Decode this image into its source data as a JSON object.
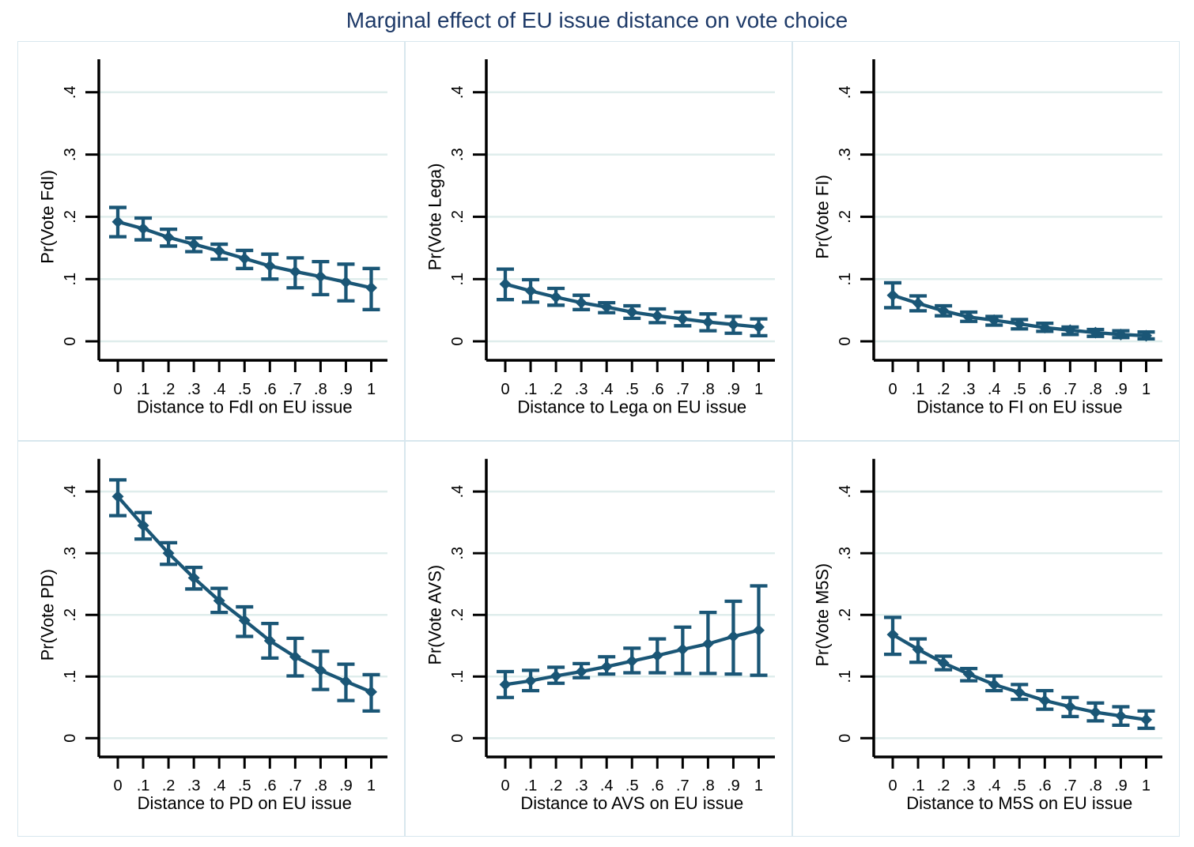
{
  "title": {
    "text": "Marginal effect of EU issue distance on vote choice"
  },
  "style": {
    "series_color": "#1a5676",
    "gridline_color": "#dfedec",
    "panel_border_color": "#d8e7ee",
    "axis_color": "#000000",
    "title_color": "#1e3a68",
    "background": "#ffffff"
  },
  "layout": {
    "rows": 2,
    "cols": 3,
    "grid": true,
    "legend": "none",
    "marker": "diamond",
    "error_bars": "capped"
  },
  "axes": {
    "x_tick_labels": [
      "0",
      ".1",
      ".2",
      ".3",
      ".4",
      ".5",
      ".6",
      ".7",
      ".8",
      ".9",
      "1"
    ],
    "x_tick_values": [
      0,
      0.1,
      0.2,
      0.3,
      0.4,
      0.5,
      0.6,
      0.7,
      0.8,
      0.9,
      1
    ],
    "y_tick_labels": [
      "0",
      ".1",
      ".2",
      ".3",
      ".4"
    ],
    "y_tick_values": [
      0,
      0.1,
      0.2,
      0.3,
      0.4
    ],
    "ylim": [
      -0.03,
      0.45
    ]
  },
  "chart_data": [
    {
      "type": "line",
      "party": "FdI",
      "ylabel": "Pr(Vote FdI)",
      "xlabel": "Distance to FdI on EU issue",
      "x": [
        0,
        0.1,
        0.2,
        0.3,
        0.4,
        0.5,
        0.6,
        0.7,
        0.8,
        0.9,
        1
      ],
      "values": [
        0.192,
        0.181,
        0.167,
        0.156,
        0.145,
        0.133,
        0.121,
        0.112,
        0.104,
        0.095,
        0.086
      ],
      "ci_low": [
        0.168,
        0.163,
        0.153,
        0.144,
        0.132,
        0.117,
        0.1,
        0.086,
        0.075,
        0.065,
        0.051
      ],
      "ci_high": [
        0.215,
        0.198,
        0.18,
        0.166,
        0.156,
        0.146,
        0.14,
        0.134,
        0.128,
        0.124,
        0.117
      ]
    },
    {
      "type": "line",
      "party": "Lega",
      "ylabel": "Pr(Vote Lega)",
      "xlabel": "Distance to Lega on EU issue",
      "x": [
        0,
        0.1,
        0.2,
        0.3,
        0.4,
        0.5,
        0.6,
        0.7,
        0.8,
        0.9,
        1
      ],
      "values": [
        0.092,
        0.081,
        0.071,
        0.062,
        0.055,
        0.047,
        0.041,
        0.036,
        0.031,
        0.027,
        0.023
      ],
      "ci_low": [
        0.067,
        0.063,
        0.058,
        0.051,
        0.046,
        0.037,
        0.03,
        0.025,
        0.017,
        0.013,
        0.009
      ],
      "ci_high": [
        0.116,
        0.099,
        0.085,
        0.074,
        0.062,
        0.057,
        0.052,
        0.047,
        0.044,
        0.04,
        0.036
      ]
    },
    {
      "type": "line",
      "party": "FI",
      "ylabel": "Pr(Vote FI)",
      "xlabel": "Distance to FI on EU issue",
      "x": [
        0,
        0.1,
        0.2,
        0.3,
        0.4,
        0.5,
        0.6,
        0.7,
        0.8,
        0.9,
        1
      ],
      "values": [
        0.074,
        0.061,
        0.049,
        0.039,
        0.034,
        0.028,
        0.022,
        0.018,
        0.014,
        0.011,
        0.009
      ],
      "ci_low": [
        0.054,
        0.049,
        0.041,
        0.032,
        0.026,
        0.02,
        0.016,
        0.011,
        0.008,
        0.006,
        0.004
      ],
      "ci_high": [
        0.094,
        0.073,
        0.057,
        0.047,
        0.04,
        0.035,
        0.029,
        0.023,
        0.019,
        0.017,
        0.015
      ]
    },
    {
      "type": "line",
      "party": "PD",
      "ylabel": "Pr(Vote PD)",
      "xlabel": "Distance to PD on EU issue",
      "x": [
        0,
        0.1,
        0.2,
        0.3,
        0.4,
        0.5,
        0.6,
        0.7,
        0.8,
        0.9,
        1
      ],
      "values": [
        0.392,
        0.345,
        0.3,
        0.26,
        0.223,
        0.191,
        0.158,
        0.132,
        0.11,
        0.092,
        0.075
      ],
      "ci_low": [
        0.361,
        0.323,
        0.282,
        0.242,
        0.204,
        0.165,
        0.13,
        0.101,
        0.079,
        0.061,
        0.044
      ],
      "ci_high": [
        0.419,
        0.366,
        0.317,
        0.277,
        0.243,
        0.213,
        0.186,
        0.162,
        0.141,
        0.12,
        0.103
      ]
    },
    {
      "type": "line",
      "party": "AVS",
      "ylabel": "Pr(Vote AVS)",
      "xlabel": "Distance to AVS on EU issue",
      "x": [
        0,
        0.1,
        0.2,
        0.3,
        0.4,
        0.5,
        0.6,
        0.7,
        0.8,
        0.9,
        1
      ],
      "values": [
        0.087,
        0.093,
        0.101,
        0.108,
        0.116,
        0.125,
        0.134,
        0.144,
        0.153,
        0.165,
        0.175
      ],
      "ci_low": [
        0.066,
        0.077,
        0.089,
        0.098,
        0.104,
        0.106,
        0.106,
        0.105,
        0.105,
        0.104,
        0.102
      ],
      "ci_high": [
        0.108,
        0.11,
        0.115,
        0.121,
        0.132,
        0.146,
        0.161,
        0.18,
        0.204,
        0.222,
        0.247
      ]
    },
    {
      "type": "line",
      "party": "M5S",
      "ylabel": "Pr(Vote M5S)",
      "xlabel": "Distance to M5S on EU issue",
      "x": [
        0,
        0.1,
        0.2,
        0.3,
        0.4,
        0.5,
        0.6,
        0.7,
        0.8,
        0.9,
        1
      ],
      "values": [
        0.168,
        0.144,
        0.122,
        0.104,
        0.087,
        0.074,
        0.061,
        0.051,
        0.042,
        0.036,
        0.03
      ],
      "ci_low": [
        0.136,
        0.123,
        0.111,
        0.093,
        0.077,
        0.063,
        0.047,
        0.035,
        0.028,
        0.021,
        0.016
      ],
      "ci_high": [
        0.196,
        0.161,
        0.133,
        0.113,
        0.101,
        0.087,
        0.077,
        0.066,
        0.057,
        0.051,
        0.044
      ]
    }
  ]
}
